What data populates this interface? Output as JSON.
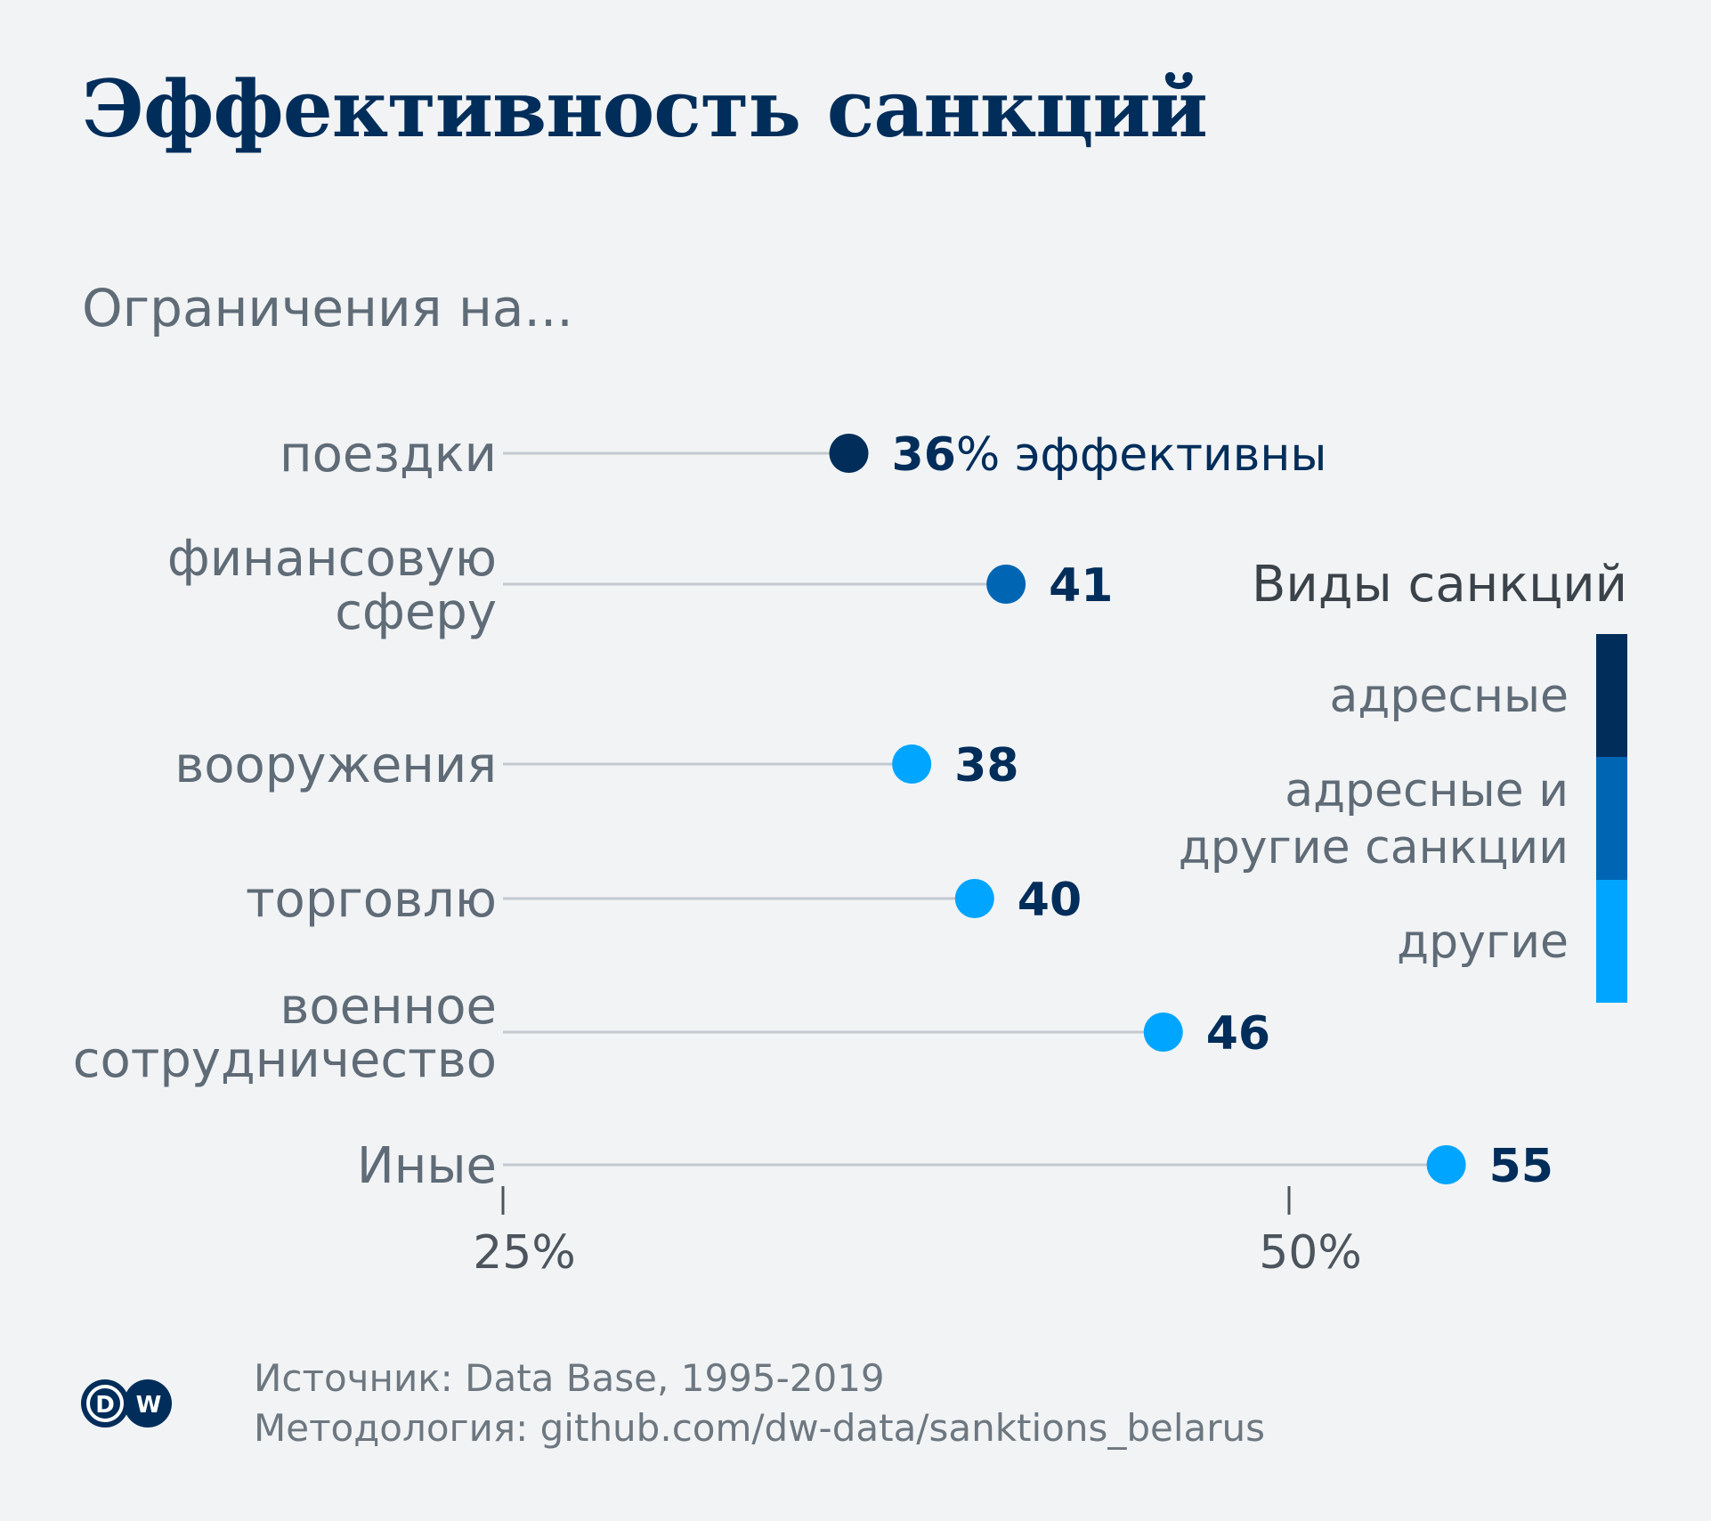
{
  "title": "Эффективность санкций",
  "subtitle": "Ограничения на...",
  "colors": {
    "background": "#f1f3f5",
    "targeted": "#002d5a",
    "targeted_and_other": "#0065b3",
    "other": "#00a5ff",
    "stem": "#c3c9cf",
    "value_text": "#002d5a"
  },
  "footer": {
    "source": "Источник: Data Base, 1995-2019",
    "methodology": "Методология: github.com/dw-data/sanktions_belarus"
  },
  "logo": {
    "text": "DW",
    "icon": "dw-logo-icon"
  },
  "chart_data": {
    "type": "lollipop",
    "title": "Эффективность санкций",
    "subtitle": "Ограничения на...",
    "xlabel": "",
    "ylabel": "",
    "unit": "%",
    "xlim": [
      25,
      57
    ],
    "xticks": [
      25,
      50
    ],
    "xtick_labels": [
      "25%",
      "50%"
    ],
    "grid": false,
    "categories": [
      [
        "поездки"
      ],
      [
        "финансовую",
        "сферу"
      ],
      [
        "вооружения"
      ],
      [
        "торговлю"
      ],
      [
        "военное",
        "сотрудничество"
      ],
      [
        "Иные"
      ]
    ],
    "values": [
      36,
      41,
      38,
      40,
      46,
      55
    ],
    "value_labels": [
      "36",
      "41",
      "38",
      "40",
      "46",
      "55"
    ],
    "first_value_suffix": "% эффективны",
    "sanction_type": [
      "targeted",
      "targeted_and_other",
      "other",
      "other",
      "other",
      "other"
    ],
    "legend": {
      "title": "Виды санкций",
      "placement": "right",
      "items": [
        {
          "key": "targeted",
          "label": [
            "адресные"
          ],
          "color": "#002d5a"
        },
        {
          "key": "targeted_and_other",
          "label": [
            "адресные и",
            "другие санкции"
          ],
          "color": "#0065b3"
        },
        {
          "key": "other",
          "label": [
            "другие"
          ],
          "color": "#00a5ff"
        }
      ]
    }
  }
}
